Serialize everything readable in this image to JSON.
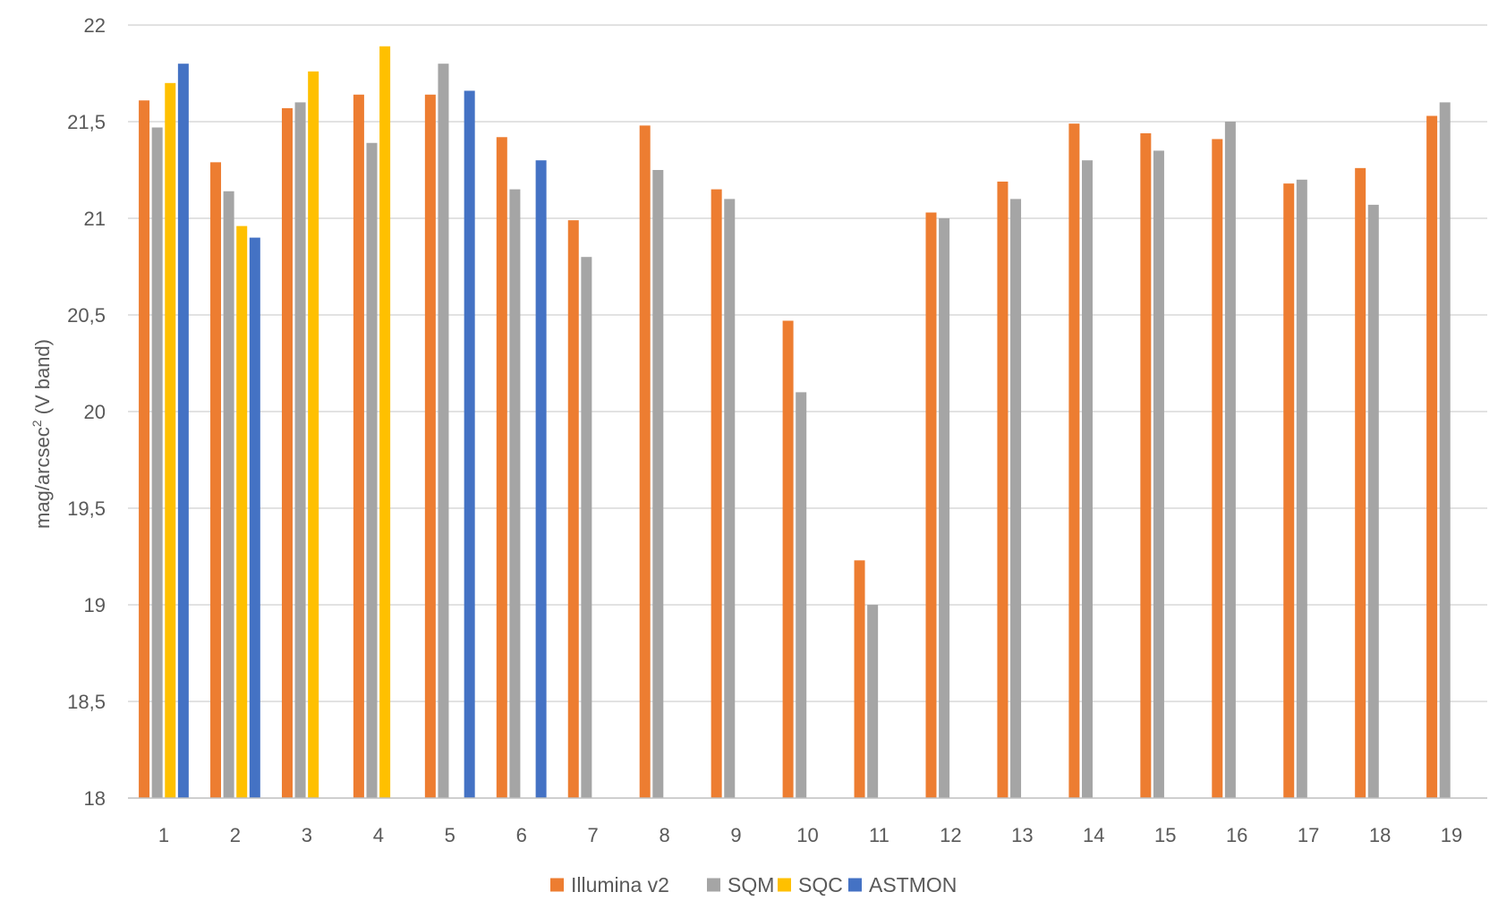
{
  "chart_data": {
    "type": "bar",
    "categories": [
      "1",
      "2",
      "3",
      "4",
      "5",
      "6",
      "7",
      "8",
      "9",
      "10",
      "11",
      "12",
      "13",
      "14",
      "15",
      "16",
      "17",
      "18",
      "19"
    ],
    "series": [
      {
        "name": "Illumina v2",
        "color": "#ED7D31",
        "values": [
          21.61,
          21.29,
          21.57,
          21.64,
          21.64,
          21.42,
          20.99,
          21.48,
          21.15,
          20.47,
          19.23,
          21.03,
          21.19,
          21.49,
          21.44,
          21.41,
          21.18,
          21.26,
          21.53
        ]
      },
      {
        "name": "SQM",
        "color": "#A5A5A5",
        "values": [
          21.47,
          21.14,
          21.6,
          21.39,
          21.8,
          21.15,
          20.8,
          21.25,
          21.1,
          20.1,
          19.0,
          21.0,
          21.1,
          21.3,
          21.35,
          21.5,
          21.2,
          21.07,
          21.6
        ]
      },
      {
        "name": "SQC",
        "color": "#FFC000",
        "values": [
          21.7,
          20.96,
          21.76,
          21.89,
          null,
          null,
          null,
          null,
          null,
          null,
          null,
          null,
          null,
          null,
          null,
          null,
          null,
          null,
          null
        ]
      },
      {
        "name": "ASTMON",
        "color": "#4472C4",
        "values": [
          21.8,
          20.9,
          null,
          null,
          21.66,
          21.3,
          null,
          null,
          null,
          null,
          null,
          null,
          null,
          null,
          null,
          null,
          null,
          null,
          null
        ]
      }
    ],
    "ylabel": "mag/arcsec² (V band)",
    "ylabel_main": "mag/arcsec",
    "ylabel_sup": "2",
    "ylabel_rest": " (V band)",
    "ylim": [
      18,
      22
    ],
    "yticks": [
      18,
      18.5,
      19,
      19.5,
      20,
      20.5,
      21,
      21.5,
      22
    ],
    "ytick_labels": [
      "18",
      "18,5",
      "19",
      "19,5",
      "20",
      "20,5",
      "21",
      "21,5",
      "22"
    ],
    "grid": "horizontal",
    "legend_position": "bottom"
  }
}
